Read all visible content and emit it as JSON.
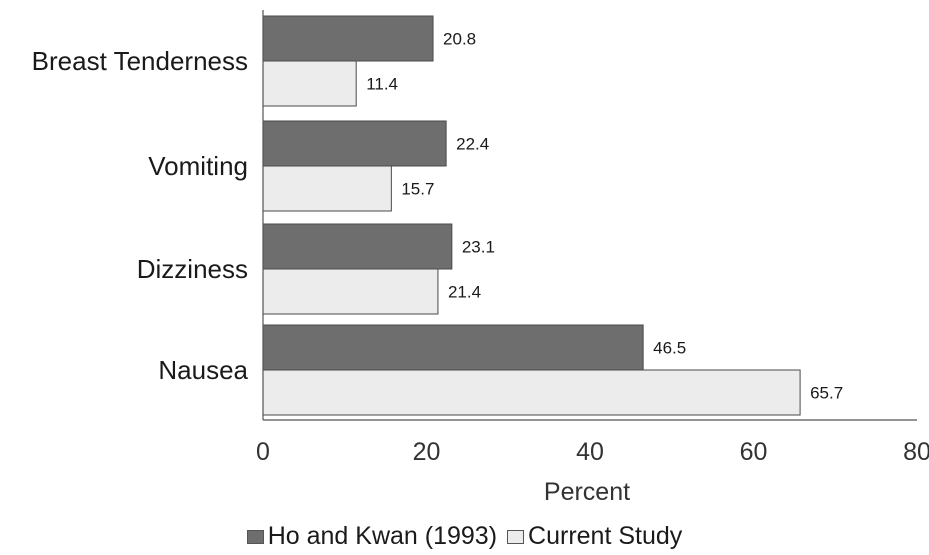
{
  "chart_data": {
    "type": "bar",
    "orientation": "horizontal",
    "categories": [
      "Breast Tenderness",
      "Vomiting",
      "Dizziness",
      "Nausea"
    ],
    "series": [
      {
        "name": "Ho and Kwan (1993)",
        "values": [
          20.8,
          22.4,
          23.1,
          46.5
        ],
        "value_labels": [
          "20.8",
          "22.4",
          "23.1",
          "46.5"
        ],
        "color": "#6e6e6e"
      },
      {
        "name": "Current Study",
        "values": [
          11.4,
          15.7,
          21.4,
          65.7
        ],
        "value_labels": [
          "11.4",
          "15.7",
          "21.4",
          "65.7"
        ],
        "color": "#ececec"
      }
    ],
    "xlabel": "Percent",
    "ylabel": "",
    "xlim": [
      0,
      80
    ],
    "xticks": [
      0,
      20,
      40,
      60,
      80
    ],
    "xtick_labels": [
      "0",
      "20",
      "40",
      "60",
      "80"
    ],
    "grid": false,
    "legend_position": "bottom"
  }
}
